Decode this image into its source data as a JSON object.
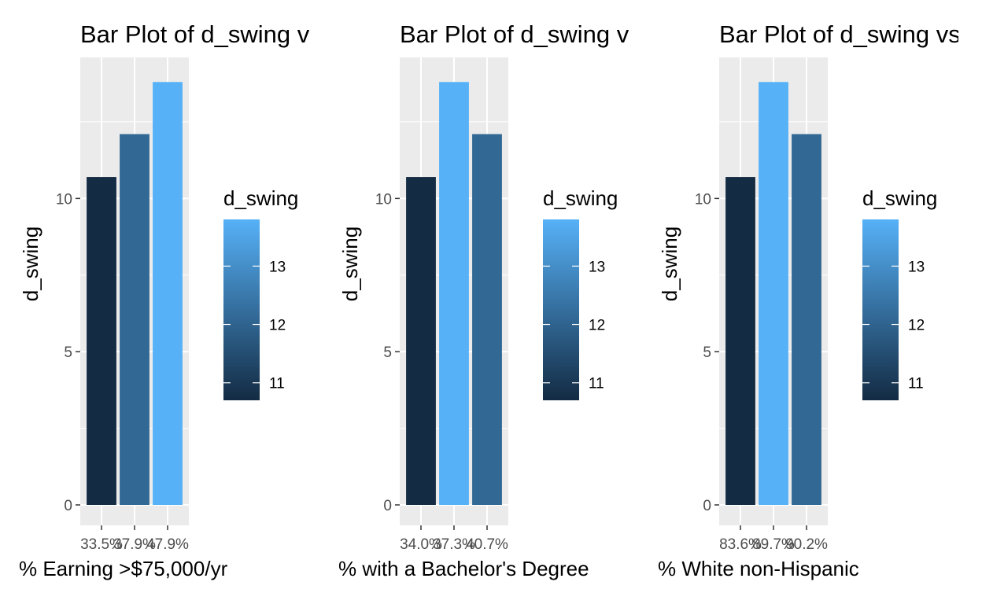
{
  "chart_data": [
    {
      "type": "bar",
      "title": "Bar Plot of d_swing v",
      "xlabel": "% Earning >$75,000/yr",
      "ylabel": "d_swing",
      "categories": [
        "33.5%",
        "37.9%",
        "47.9%"
      ],
      "values": [
        10.7,
        12.1,
        13.8
      ],
      "ylim": [
        0,
        14.5
      ],
      "yticks": [
        0,
        5,
        10
      ],
      "legend": {
        "title": "d_swing",
        "breaks": [
          11,
          12,
          13
        ],
        "range": [
          10.7,
          13.8
        ],
        "low_color": "#132b43",
        "high_color": "#56b1f7",
        "placement": "right"
      },
      "grid": true
    },
    {
      "type": "bar",
      "title": "Bar Plot of d_swing v",
      "xlabel": "% with a Bachelor's Degree",
      "ylabel": "d_swing",
      "categories": [
        "34.0%",
        "37.3%",
        "40.7%"
      ],
      "values": [
        10.7,
        13.8,
        12.1
      ],
      "ylim": [
        0,
        14.5
      ],
      "yticks": [
        0,
        5,
        10
      ],
      "legend": {
        "title": "d_swing",
        "breaks": [
          11,
          12,
          13
        ],
        "range": [
          10.7,
          13.8
        ],
        "low_color": "#132b43",
        "high_color": "#56b1f7",
        "placement": "right"
      },
      "grid": true
    },
    {
      "type": "bar",
      "title": "Bar Plot of d_swing vs",
      "xlabel": "% White non-Hispanic",
      "ylabel": "d_swing",
      "categories": [
        "83.6%",
        "89.7%",
        "90.2%"
      ],
      "values": [
        10.7,
        13.8,
        12.1
      ],
      "ylim": [
        0,
        14.5
      ],
      "yticks": [
        0,
        5,
        10
      ],
      "legend": {
        "title": "d_swing",
        "breaks": [
          11,
          12,
          13
        ],
        "range": [
          10.7,
          13.8
        ],
        "low_color": "#132b43",
        "high_color": "#56b1f7",
        "placement": "right"
      },
      "grid": true
    }
  ]
}
